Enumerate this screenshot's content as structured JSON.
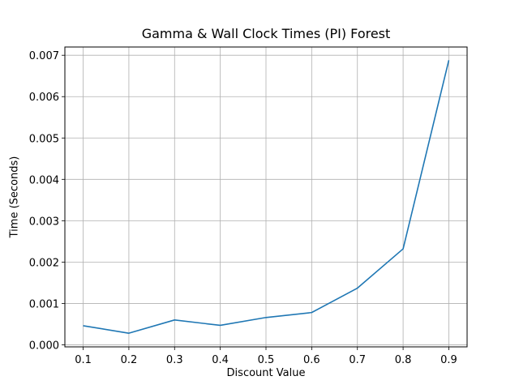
{
  "chart_data": {
    "type": "line",
    "title": "Gamma & Wall Clock Times (PI) Forest",
    "xlabel": "Discount Value",
    "ylabel": "Time (Seconds)",
    "x": [
      0.1,
      0.2,
      0.3,
      0.4,
      0.5,
      0.6,
      0.7,
      0.8,
      0.9
    ],
    "series": [
      {
        "values": [
          0.00046,
          0.00028,
          0.0006,
          0.00047,
          0.00066,
          0.00078,
          0.00137,
          0.00232,
          0.00688
        ],
        "color": "#1f77b4"
      }
    ],
    "xticks": [
      "0.1",
      "0.2",
      "0.3",
      "0.4",
      "0.5",
      "0.6",
      "0.7",
      "0.8",
      "0.9"
    ],
    "yticks": [
      "0.000",
      "0.001",
      "0.002",
      "0.003",
      "0.004",
      "0.005",
      "0.006",
      "0.007"
    ],
    "xlim": [
      0.06,
      0.94
    ],
    "ylim": [
      -5e-05,
      0.0072
    ],
    "grid": true,
    "grid_color": "#b0b0b0"
  }
}
